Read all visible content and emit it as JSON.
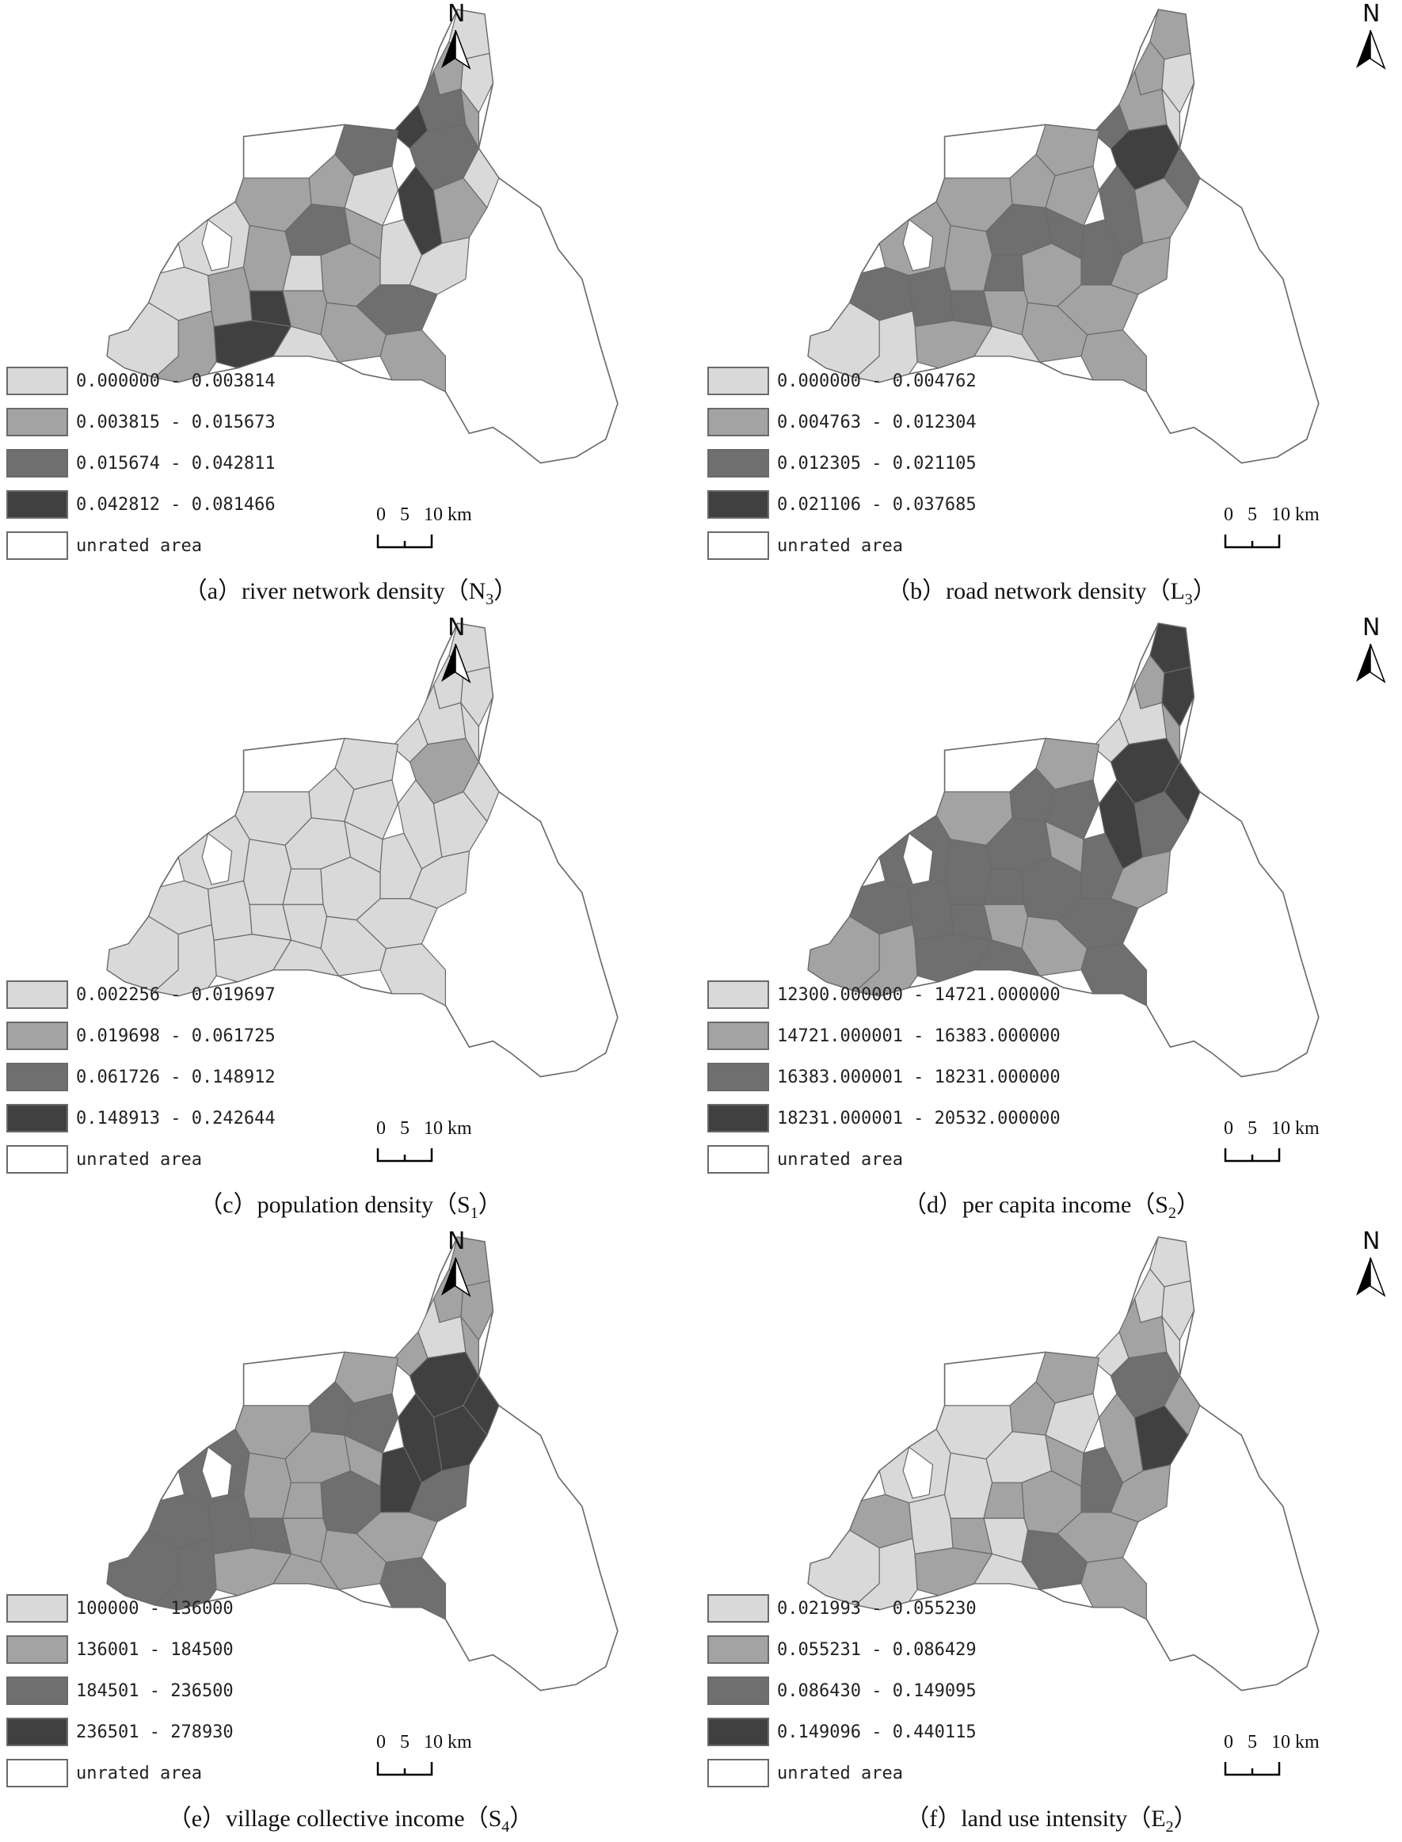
{
  "colors": {
    "class1": "#d9d9d9",
    "class2": "#a3a3a3",
    "class3": "#6f6f6f",
    "class4": "#404040",
    "unrated": "#ffffff",
    "outline": "#6a6a6a"
  },
  "north_label": "N",
  "scale": {
    "zero": "0",
    "mid": "5",
    "end": "10 km"
  },
  "unrated_label": "unrated area",
  "panels": [
    {
      "caption_prefix": "（a）river network density（N",
      "caption_sub": "3",
      "caption_suffix": "）",
      "classes": [
        "0.000000 - 0.003814",
        "0.003815 - 0.015673",
        "0.015674 - 0.042811",
        "0.042812 - 0.081466"
      ]
    },
    {
      "caption_prefix": "（b）road network density（L",
      "caption_sub": "3",
      "caption_suffix": "）",
      "classes": [
        "0.000000 - 0.004762",
        "0.004763 - 0.012304",
        "0.012305 - 0.021105",
        "0.021106 - 0.037685"
      ]
    },
    {
      "caption_prefix": "（c）population density（S",
      "caption_sub": "1",
      "caption_suffix": "）",
      "classes": [
        "0.002256 - 0.019697",
        "0.019698 - 0.061725",
        "0.061726 - 0.148912",
        "0.148913 - 0.242644"
      ]
    },
    {
      "caption_prefix": "（d）per capita income（S",
      "caption_sub": "2",
      "caption_suffix": "）",
      "classes": [
        "12300.000000 - 14721.000000",
        "14721.000001 - 16383.000000",
        "16383.000001 - 18231.000000",
        "18231.000001 - 20532.000000"
      ]
    },
    {
      "caption_prefix": "（e）village collective income（S",
      "caption_sub": "4",
      "caption_suffix": "）",
      "classes": [
        "100000 - 136000",
        "136001 - 184500",
        "184501 - 236500",
        "236501 - 278930"
      ]
    },
    {
      "caption_prefix": "（f）land use intensity（E",
      "caption_sub": "2",
      "caption_suffix": "）",
      "classes": [
        "0.021993 - 0.055230",
        "0.055231 - 0.086429",
        "0.086430 - 0.149095",
        "0.149096 - 0.440115"
      ]
    }
  ]
}
